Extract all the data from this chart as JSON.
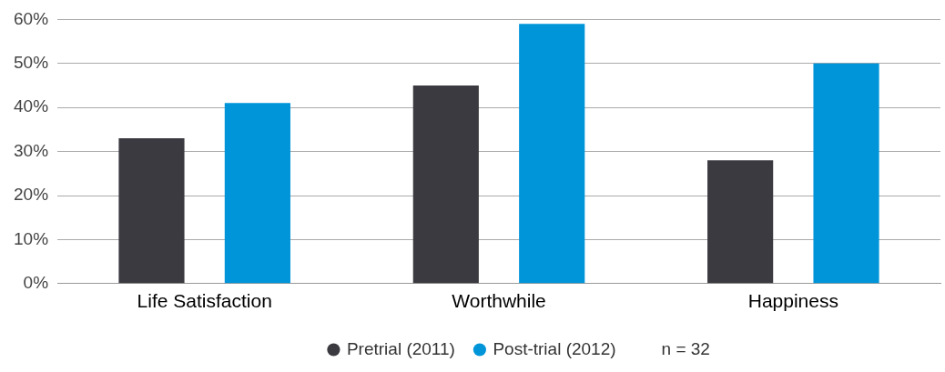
{
  "chart_data": {
    "type": "bar",
    "categories": [
      "Life Satisfaction",
      "Worthwhile",
      "Happiness"
    ],
    "series": [
      {
        "name": "Pretrial (2011)",
        "color": "#3a3a40",
        "values": [
          33,
          45,
          28
        ]
      },
      {
        "name": "Post-trial (2012)",
        "color": "#0095d9",
        "values": [
          41,
          59,
          50
        ]
      }
    ],
    "ylim": [
      0,
      60
    ],
    "yticks": [
      {
        "value": 0,
        "label": "0%"
      },
      {
        "value": 10,
        "label": "10%"
      },
      {
        "value": 20,
        "label": "20%"
      },
      {
        "value": 30,
        "label": "30%"
      },
      {
        "value": 40,
        "label": "40%"
      },
      {
        "value": 50,
        "label": "50%"
      },
      {
        "value": 60,
        "label": "60%"
      }
    ],
    "grid": "y",
    "legend": "bottom",
    "annotations": [
      "n = 32"
    ]
  }
}
